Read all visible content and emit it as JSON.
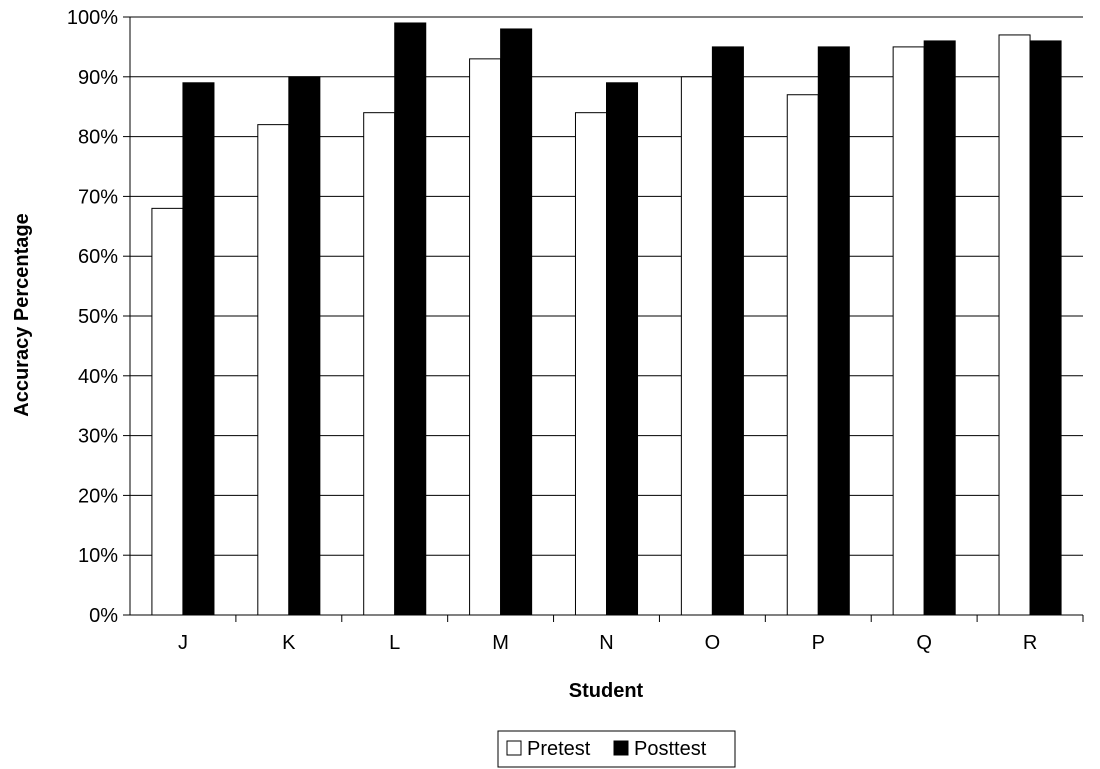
{
  "chart_data": {
    "type": "bar",
    "categories": [
      "J",
      "K",
      "L",
      "M",
      "N",
      "O",
      "P",
      "Q",
      "R"
    ],
    "series": [
      {
        "name": "Pretest",
        "values": [
          68,
          82,
          84,
          93,
          84,
          90,
          87,
          95,
          97
        ],
        "color": "#ffffff"
      },
      {
        "name": "Posttest",
        "values": [
          89,
          90,
          99,
          98,
          89,
          95,
          95,
          96,
          96
        ],
        "color": "#000000"
      }
    ],
    "xlabel": "Student",
    "ylabel": "Accuracy Percentage",
    "ylim": [
      0,
      100
    ],
    "yticks": [
      "0%",
      "10%",
      "20%",
      "30%",
      "40%",
      "50%",
      "60%",
      "70%",
      "80%",
      "90%",
      "100%"
    ],
    "grid": true,
    "legend_position": "bottom-center"
  }
}
